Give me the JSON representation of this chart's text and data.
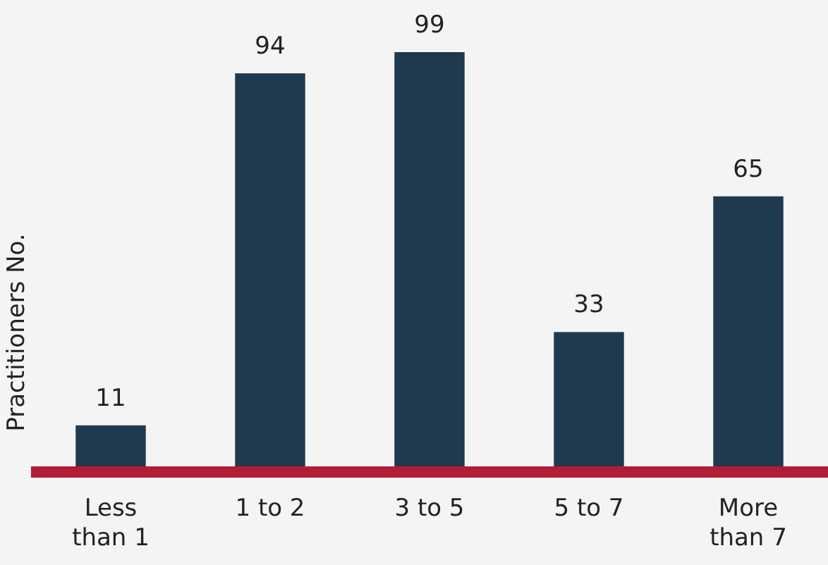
{
  "chart_data": {
    "type": "bar",
    "ylabel": "Practitioners No.",
    "categories": [
      "Less than 1",
      "1 to 2",
      "3 to 5",
      "5 to 7",
      "More than 7"
    ],
    "values": [
      11,
      94,
      99,
      33,
      65
    ],
    "color": "#1f3a4f",
    "data_labels": true
  }
}
